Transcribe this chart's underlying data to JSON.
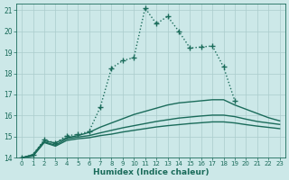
{
  "xlabel": "Humidex (Indice chaleur)",
  "background_color": "#cce8e8",
  "grid_color": "#aacccc",
  "line_color": "#1a6b5a",
  "xlim": [
    -0.5,
    23.5
  ],
  "ylim": [
    14,
    21.3
  ],
  "xticks": [
    0,
    1,
    2,
    3,
    4,
    5,
    6,
    7,
    8,
    9,
    10,
    11,
    12,
    13,
    14,
    15,
    16,
    17,
    18,
    19,
    20,
    21,
    22,
    23
  ],
  "yticks": [
    14,
    15,
    16,
    17,
    18,
    19,
    20,
    21
  ],
  "series": [
    {
      "x": [
        0,
        1,
        2,
        3,
        4,
        5,
        6,
        7,
        8,
        9,
        10,
        11,
        12,
        13,
        14,
        15,
        16,
        17,
        18,
        19
      ],
      "y": [
        14.0,
        14.15,
        14.85,
        14.7,
        15.05,
        15.1,
        15.25,
        16.4,
        18.25,
        18.6,
        18.75,
        21.1,
        20.35,
        20.7,
        20.0,
        19.2,
        19.25,
        19.3,
        18.3,
        16.7
      ],
      "marker": "+",
      "markersize": 4,
      "linewidth": 1.0,
      "dotted": true
    },
    {
      "x": [
        0,
        1,
        2,
        3,
        4,
        5,
        6,
        7,
        8,
        9,
        10,
        11,
        12,
        13,
        14,
        15,
        16,
        17,
        18,
        19,
        20,
        21,
        22,
        23
      ],
      "y": [
        14.0,
        14.15,
        14.8,
        14.7,
        14.95,
        15.05,
        15.2,
        15.45,
        15.65,
        15.85,
        16.05,
        16.2,
        16.35,
        16.5,
        16.6,
        16.65,
        16.7,
        16.75,
        16.75,
        16.5,
        16.3,
        16.1,
        15.9,
        15.75
      ],
      "marker": null,
      "markersize": 0,
      "linewidth": 1.0,
      "dotted": false
    },
    {
      "x": [
        0,
        1,
        2,
        3,
        4,
        5,
        6,
        7,
        8,
        9,
        10,
        11,
        12,
        13,
        14,
        15,
        16,
        17,
        18,
        19,
        20,
        21,
        22,
        23
      ],
      "y": [
        14.0,
        14.1,
        14.75,
        14.6,
        14.9,
        14.98,
        15.05,
        15.18,
        15.3,
        15.42,
        15.52,
        15.62,
        15.72,
        15.8,
        15.88,
        15.93,
        15.98,
        16.02,
        16.02,
        15.95,
        15.83,
        15.72,
        15.65,
        15.58
      ],
      "marker": null,
      "markersize": 0,
      "linewidth": 1.0,
      "dotted": false
    },
    {
      "x": [
        0,
        1,
        2,
        3,
        4,
        5,
        6,
        7,
        8,
        9,
        10,
        11,
        12,
        13,
        14,
        15,
        16,
        17,
        18,
        19,
        20,
        21,
        22,
        23
      ],
      "y": [
        14.0,
        14.08,
        14.72,
        14.55,
        14.82,
        14.9,
        14.95,
        15.05,
        15.12,
        15.22,
        15.3,
        15.38,
        15.46,
        15.52,
        15.57,
        15.62,
        15.66,
        15.7,
        15.7,
        15.65,
        15.57,
        15.5,
        15.44,
        15.38
      ],
      "marker": null,
      "markersize": 0,
      "linewidth": 1.0,
      "dotted": false
    }
  ]
}
